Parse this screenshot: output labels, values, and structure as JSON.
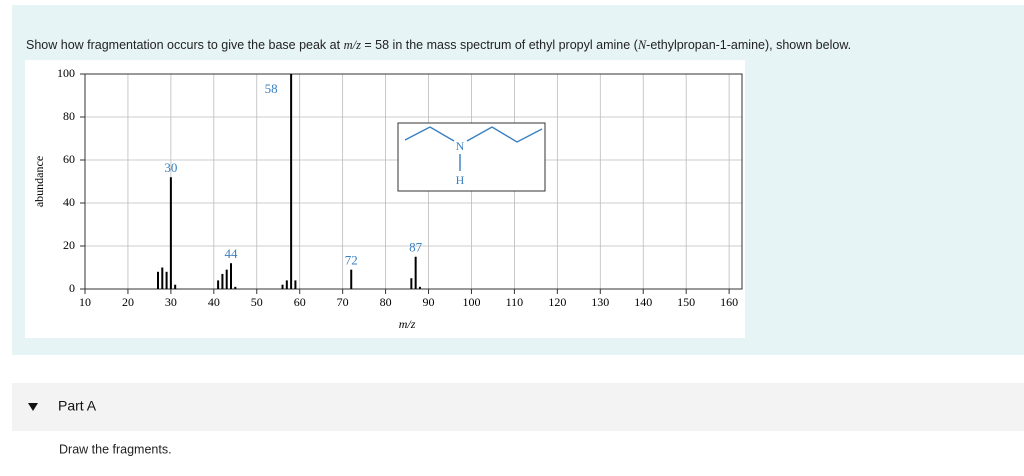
{
  "question": [
    "Show how fragmentation occurs to give the base peak at ",
    "m/z",
    " = 58 in the mass spectrum of ethyl propyl amine (",
    "N",
    "-ethylpropan-1-amine), shown below."
  ],
  "chart_data": {
    "type": "bar",
    "x_label": "m/z",
    "y_label": "abundance",
    "x": [
      27,
      28,
      29,
      30,
      31,
      41,
      42,
      43,
      44,
      45,
      56,
      57,
      58,
      59,
      72,
      86,
      87,
      88
    ],
    "values": [
      8,
      10,
      8,
      52,
      2,
      4,
      7,
      9,
      12,
      1,
      2,
      4,
      100,
      4,
      9,
      5,
      15,
      1
    ],
    "color": "#000000",
    "peak_labels": [
      30,
      44,
      58,
      72,
      87
    ],
    "xlim": [
      10,
      163
    ],
    "ylim": [
      0,
      100
    ],
    "xticks": [
      10,
      20,
      30,
      40,
      50,
      60,
      70,
      80,
      90,
      100,
      110,
      120,
      130,
      140,
      150,
      160
    ],
    "yticks": [
      0,
      20,
      40,
      60,
      80,
      100
    ],
    "grid": true
  },
  "structure": {
    "atoms": [
      "N",
      "H"
    ]
  },
  "part": {
    "title": "Part A",
    "instruction": "Draw the fragments."
  }
}
